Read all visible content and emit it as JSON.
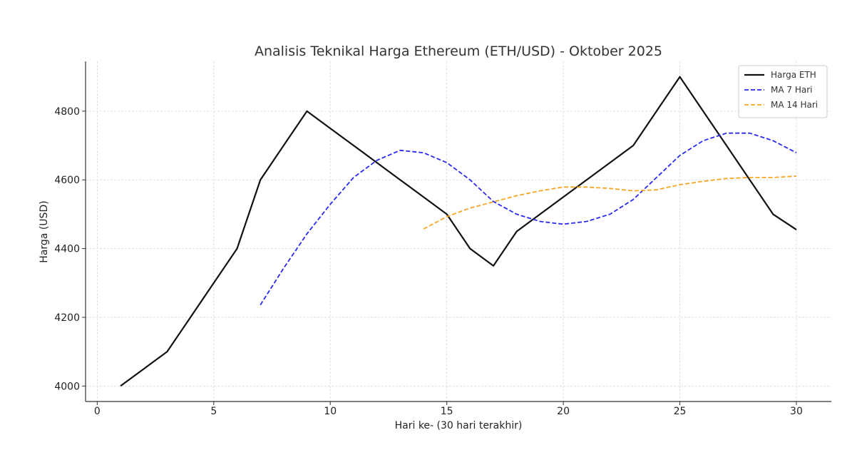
{
  "chart_data": {
    "type": "line",
    "title": "Analisis Teknikal Harga Ethereum (ETH/USD) - Oktober 2025",
    "xlabel": "Hari ke- (30 hari terakhir)",
    "ylabel": "Harga (USD)",
    "xlim": [
      -0.5,
      31.5
    ],
    "ylim": [
      3955,
      4945
    ],
    "xticks": [
      0,
      5,
      10,
      15,
      20,
      25,
      30
    ],
    "yticks": [
      4000,
      4200,
      4400,
      4600,
      4800
    ],
    "grid": true,
    "legend_position": "top-right",
    "series": [
      {
        "name": "Harga ETH",
        "color": "#111111",
        "style": "solid",
        "x": [
          1,
          2,
          3,
          4,
          5,
          6,
          7,
          8,
          9,
          10,
          11,
          12,
          13,
          14,
          15,
          16,
          17,
          18,
          19,
          20,
          21,
          22,
          23,
          24,
          25,
          26,
          27,
          28,
          29,
          30
        ],
        "y": [
          4000,
          4050,
          4100,
          4200,
          4300,
          4400,
          4600,
          4700,
          4800,
          4750,
          4700,
          4650,
          4600,
          4550,
          4500,
          4400,
          4350,
          4450,
          4500,
          4550,
          4600,
          4650,
          4700,
          4800,
          4900,
          4800,
          4700,
          4600,
          4500,
          4455
        ]
      },
      {
        "name": "MA 7 Hari",
        "color": "#2a2aef",
        "style": "dashed",
        "x": [
          7,
          8,
          9,
          10,
          11,
          12,
          13,
          14,
          15,
          16,
          17,
          18,
          19,
          20,
          21,
          22,
          23,
          24,
          25,
          26,
          27,
          28,
          29,
          30
        ],
        "y": [
          4236,
          4343,
          4443,
          4529,
          4607,
          4657,
          4686,
          4679,
          4650,
          4600,
          4537,
          4500,
          4479,
          4471,
          4479,
          4500,
          4543,
          4607,
          4671,
          4714,
          4736,
          4736,
          4714,
          4679
        ]
      },
      {
        "name": "MA 14 Hari",
        "color": "#f6a623",
        "style": "dashed",
        "x": [
          14,
          15,
          16,
          17,
          18,
          19,
          20,
          21,
          22,
          23,
          24,
          25,
          26,
          27,
          28,
          29,
          30
        ],
        "y": [
          4457,
          4493,
          4518,
          4536,
          4554,
          4568,
          4579,
          4579,
          4575,
          4568,
          4571,
          4586,
          4596,
          4604,
          4607,
          4607,
          4611
        ]
      }
    ]
  }
}
